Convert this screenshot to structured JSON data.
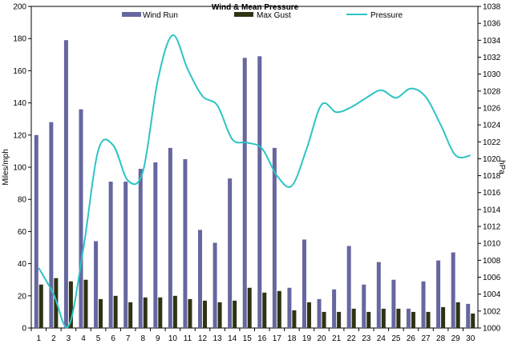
{
  "chart_data": {
    "type": "bar",
    "title": "Wind & Mean Pressure",
    "ylabel": "Miles/mph",
    "y2label": "hPa",
    "ylim": [
      0,
      200
    ],
    "y2lim": [
      1000,
      1038
    ],
    "yticks": [
      0,
      20,
      40,
      60,
      80,
      100,
      120,
      140,
      160,
      180,
      200
    ],
    "y2ticks": [
      1000,
      1002,
      1004,
      1006,
      1008,
      1010,
      1012,
      1014,
      1016,
      1018,
      1020,
      1022,
      1024,
      1026,
      1028,
      1030,
      1032,
      1034,
      1036,
      1038
    ],
    "categories": [
      "1",
      "2",
      "3",
      "4",
      "5",
      "6",
      "7",
      "8",
      "9",
      "10",
      "11",
      "12",
      "13",
      "14",
      "15",
      "16",
      "17",
      "18",
      "19",
      "20",
      "21",
      "22",
      "23",
      "24",
      "25",
      "26",
      "27",
      "28",
      "29",
      "30"
    ],
    "legend_position": "top",
    "series": [
      {
        "name": "Wind Run",
        "type": "bar",
        "color": "#6666A0",
        "values": [
          120,
          128,
          179,
          136,
          54,
          91,
          91,
          99,
          103,
          112,
          105,
          61,
          53,
          93,
          168,
          169,
          112,
          25,
          55,
          18,
          24,
          51,
          27,
          41,
          30,
          12,
          29,
          42,
          47,
          15
        ]
      },
      {
        "name": "Max Gust",
        "type": "bar",
        "color": "#2E3313",
        "values": [
          27,
          31,
          29,
          30,
          18,
          20,
          16,
          19,
          19,
          20,
          18,
          17,
          16,
          17,
          25,
          22,
          23,
          11,
          16,
          10,
          10,
          12,
          10,
          12,
          12,
          10,
          10,
          13,
          16,
          9
        ]
      },
      {
        "name": "Pressure",
        "type": "line",
        "axis": "right",
        "color": "#2EC4C4",
        "values": [
          1007.1,
          1004.0,
          1000.2,
          1009.4,
          1021.0,
          1021.6,
          1017.4,
          1018.5,
          1029.3,
          1034.6,
          1030.6,
          1027.4,
          1026.3,
          1022.3,
          1021.9,
          1021.2,
          1018.0,
          1016.8,
          1021.2,
          1026.4,
          1025.5,
          1026.1,
          1027.2,
          1028.1,
          1027.2,
          1028.3,
          1027.3,
          1024.0,
          1020.4,
          1020.4
        ]
      }
    ]
  }
}
